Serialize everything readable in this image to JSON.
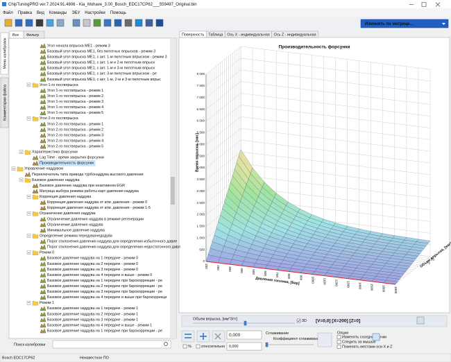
{
  "window": {
    "title": "ChipTuningPRO ver.7.2024.91.4806 - Kia_Mohave_3.00_Bosch_EDC17CP62___559497_Original.bin"
  },
  "menu": [
    "Файл",
    "Правка",
    "Вид",
    "Команды",
    "ЭБУ",
    "Настройки",
    "Помощь"
  ],
  "toolbar": {
    "dropdown": "Изменить по матрице..."
  },
  "left_panel": {
    "side_tabs": [
      "Меню калибровок",
      "Комментарии файла"
    ],
    "tabs": [
      "Все",
      "Фильтр"
    ],
    "tree": [
      {
        "label": "Угол начала впрыска МЕ1 - режим 3",
        "level": 4,
        "kind": "map"
      },
      {
        "label": "Базовый угол впрыска МЕ1, без пилотных впрысков - режим 3",
        "level": 4,
        "kind": "map"
      },
      {
        "label": "Базовый угол впрыска МЕ1, с акт. 1-м пилотным впрыском - режим 3",
        "level": 4,
        "kind": "map"
      },
      {
        "label": "Базовый угол впрыска МЕ1, с акт. 1-м и 2-м пилотным впрыск",
        "level": 4,
        "kind": "map"
      },
      {
        "label": "Базовый угол впрыска МЕ1, с акт. 1-м и 3-м пилотным впрыск",
        "level": 4,
        "kind": "map"
      },
      {
        "label": "Базовый угол впрыска МЕ1, с акт. 3-м пилотным впрыском - ре",
        "level": 4,
        "kind": "map"
      },
      {
        "label": "Базовый угол впрыска МЕ1, с акт. 1-м, 2-м и 3-м пилотным впрыс",
        "level": 4,
        "kind": "map"
      },
      {
        "label": "Угол 1-го поствпрыска",
        "level": 3,
        "kind": "folder"
      },
      {
        "label": "Угол 1-го поствпрыска - режим 1",
        "level": 4,
        "kind": "map"
      },
      {
        "label": "Угол 1-го поствпрыска - режим 2",
        "level": 4,
        "kind": "map"
      },
      {
        "label": "Угол 1-го поствпрыска - режим 3",
        "level": 4,
        "kind": "map"
      },
      {
        "label": "Угол 1-го поствпрыска - режим 4",
        "level": 4,
        "kind": "map"
      },
      {
        "label": "Угол 1-го поствпрыска - режим 5",
        "level": 4,
        "kind": "map"
      },
      {
        "label": "Угол 2-го поствпрыска",
        "level": 3,
        "kind": "folder"
      },
      {
        "label": "Угол 2-го поствпрыска - режим 1",
        "level": 4,
        "kind": "map"
      },
      {
        "label": "Угол 2-го поствпрыска - режим 2",
        "level": 4,
        "kind": "map"
      },
      {
        "label": "Угол 2-го поствпрыска - режим 3",
        "level": 4,
        "kind": "map"
      },
      {
        "label": "Угол 2-го поствпрыска - режим 4",
        "level": 4,
        "kind": "map"
      },
      {
        "label": "Угол 2-го поствпрыска - режим 5",
        "level": 4,
        "kind": "map"
      },
      {
        "label": "Характеристика форсунки",
        "level": 2,
        "kind": "folder"
      },
      {
        "label": "Lag Time - время закрытия форсунки",
        "level": 3,
        "kind": "map"
      },
      {
        "label": "Производительность форсунки",
        "level": 3,
        "kind": "map",
        "selected": true
      },
      {
        "label": "Управление наддувом",
        "level": 1,
        "kind": "folder"
      },
      {
        "label": "Переключатель типа привода турбонаддува высокого давления",
        "level": 2,
        "kind": "map"
      },
      {
        "label": "Базовое давление наддува",
        "level": 2,
        "kind": "folder"
      },
      {
        "label": "Базовое давление наддува при неактивном EGR",
        "level": 3,
        "kind": "map"
      },
      {
        "label": "Матрица выбора режима работы карт давления наддува",
        "level": 3,
        "kind": "map"
      },
      {
        "label": "Коррекция давления наддува",
        "level": 3,
        "kind": "folder"
      },
      {
        "label": "Коррекция давления наддува от атм. давления - режим 0",
        "level": 4,
        "kind": "map"
      },
      {
        "label": "Коррекция давления наддува от атм. давления - режим 1-5",
        "level": 4,
        "kind": "map"
      },
      {
        "label": "Ограничение давления наддува",
        "level": 3,
        "kind": "folder"
      },
      {
        "label": "Ограничение давления наддува в режиме регенерации",
        "level": 4,
        "kind": "map"
      },
      {
        "label": "Ограничение давления наддува",
        "level": 4,
        "kind": "map"
      },
      {
        "label": "Минимальное давление наддува",
        "level": 4,
        "kind": "map"
      },
      {
        "label": "Определение режима передува/недодува",
        "level": 3,
        "kind": "folder"
      },
      {
        "label": "Порог отклонения давления наддува для определения избыточного давле",
        "level": 4,
        "kind": "map"
      },
      {
        "label": "Порог отклонения давления наддува для определения недостаточного давл",
        "level": 4,
        "kind": "map"
      },
      {
        "label": "Режим 0",
        "level": 3,
        "kind": "folder"
      },
      {
        "label": "Базовое давление наддува на 1 передаче - режим 0",
        "level": 4,
        "kind": "map"
      },
      {
        "label": "Базовое давление наддува на 2 передаче - режим 0",
        "level": 4,
        "kind": "map"
      },
      {
        "label": "Базовое давление наддува на 3 передаче - режим 0",
        "level": 4,
        "kind": "map"
      },
      {
        "label": "Базовое давление наддува на 4 передаче и выше - режим 0",
        "level": 4,
        "kind": "map"
      },
      {
        "label": "Базовое давление наддува на 1 передаче при барокоррекции - ре",
        "level": 4,
        "kind": "map"
      },
      {
        "label": "Базовое давление наддува на 2 передаче при барокоррекции - ре",
        "level": 4,
        "kind": "map"
      },
      {
        "label": "Базовое давление наддува на 3 передаче при барокоррекции - ре",
        "level": 4,
        "kind": "map"
      },
      {
        "label": "Базовое давление наддува на 4 передаче и выше при барокоррекци",
        "level": 4,
        "kind": "map"
      },
      {
        "label": "Режим 1",
        "level": 3,
        "kind": "folder"
      },
      {
        "label": "Базовое давление наддува на 1 передаче - режим 1",
        "level": 4,
        "kind": "map"
      },
      {
        "label": "Базовое давление наддува на 2 передаче - режим 1",
        "level": 4,
        "kind": "map"
      },
      {
        "label": "Базовое давление наддува на 3 передаче - режим 1",
        "level": 4,
        "kind": "map"
      },
      {
        "label": "Базовое давление наддува на 4 передаче и выше - режим 1",
        "level": 4,
        "kind": "map"
      },
      {
        "label": "Базовое давление наддува на 1 передаче при барокоррекции - ре",
        "level": 4,
        "kind": "map"
      }
    ],
    "search_label": "Поиск калибровки"
  },
  "view_tabs": [
    "Поверхность",
    "Таблица",
    "Ось X - индивидуальная",
    "Ось Z - индивидуальная"
  ],
  "surface": {
    "title": "Производительность форсунки",
    "vertical_label": "Время впрыска, [мкс]",
    "x_label": "Давление топлива, [Бар]",
    "depth_label": "Объем впрыска, [мм^3/тг]",
    "vertical_ticks": [
      "0",
      "500",
      "1 000",
      "1 500",
      "2 000",
      "2 500",
      "3 000",
      "3 500",
      "4 000",
      "4 500",
      "5 000",
      "5 500",
      "6 000",
      "6 500",
      "7 000",
      "7 500",
      "8 000"
    ],
    "x_ticks": [
      "200",
      "250",
      "300",
      "400",
      "500",
      "600",
      "700",
      "800",
      "900",
      "1000",
      "1100",
      "1200",
      "1300",
      "1400",
      "1500",
      "1600",
      "1800"
    ],
    "depth_ticks": [
      "75",
      "85"
    ]
  },
  "controls": {
    "axis_select": "Объем впрыска, [мм^3/тг]",
    "three_d": "3D",
    "cursor": "[V=0,0] [X=200] [Z=0]",
    "value": "0,000",
    "percent": "%",
    "relative": "относительно",
    "relative_value": "0,000",
    "smoothing": "Сглаживание",
    "smoothing_factor": "Коэффициент сглаживания",
    "options": "Опции",
    "option_items": [
      "Изменять соседние точки",
      "Следить за мышью",
      "Поменять местами оси X и Z"
    ]
  },
  "status": [
    "Bosch EDC17CP62",
    "Неизвестное ПО"
  ]
}
